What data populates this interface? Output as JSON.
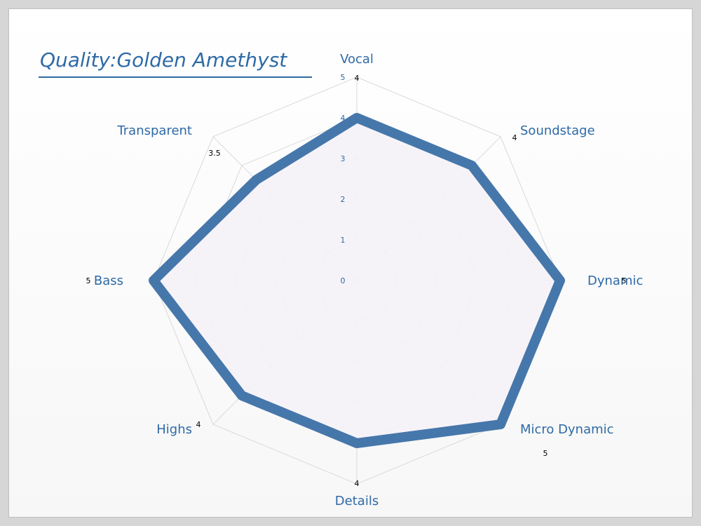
{
  "chart_data": {
    "type": "radar",
    "title": "Quality:Golden Amethyst",
    "categories": [
      "Vocal",
      "Soundstage",
      "Dynamic",
      "Micro Dynamic",
      "Details",
      "Highs",
      "Bass",
      "Transparent"
    ],
    "series": [
      {
        "values": [
          4,
          4,
          5,
          5,
          4,
          4,
          5,
          3.5
        ]
      }
    ],
    "data_labels": [
      "4",
      "4",
      "5",
      "5",
      "4",
      "4",
      "5",
      "3.5"
    ],
    "rlim": [
      0,
      5
    ],
    "ticks": [
      "0",
      "1",
      "2",
      "3",
      "4",
      "5"
    ],
    "grid": true,
    "colors": {
      "series_line": "#4677ab",
      "series_fill": "#f5f2f7",
      "grid": "#d9d9d9",
      "label_text": "#2e6aa6"
    }
  }
}
